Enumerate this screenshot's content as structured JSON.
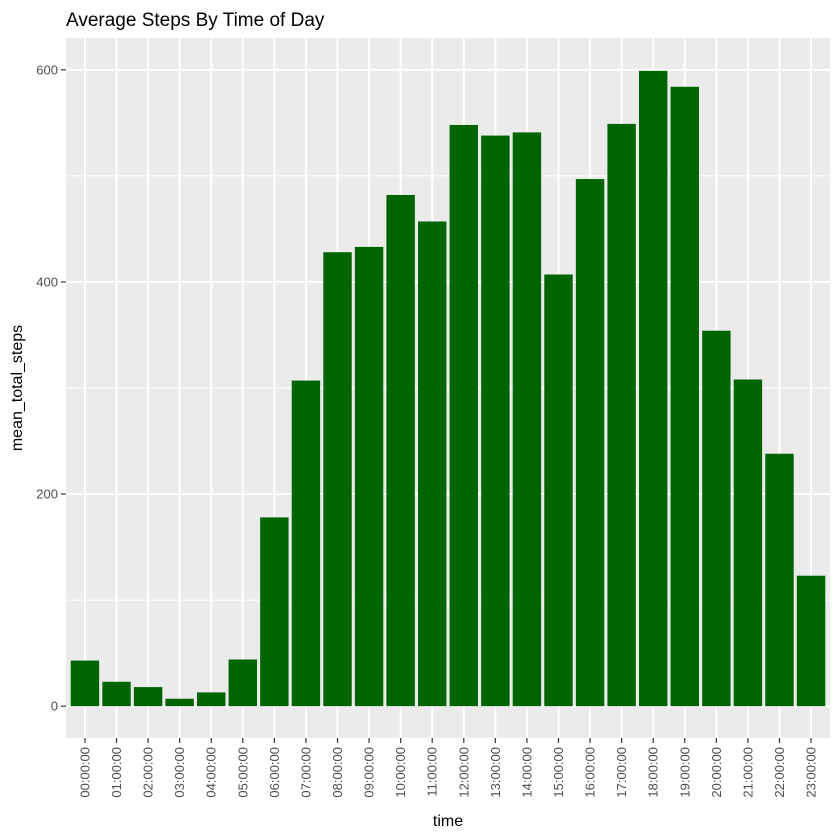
{
  "chart_data": {
    "type": "bar",
    "title": "Average Steps By Time of Day",
    "xlabel": "time",
    "ylabel": "mean_total_steps",
    "categories": [
      "00:00:00",
      "01:00:00",
      "02:00:00",
      "03:00:00",
      "04:00:00",
      "05:00:00",
      "06:00:00",
      "07:00:00",
      "08:00:00",
      "09:00:00",
      "10:00:00",
      "11:00:00",
      "12:00:00",
      "13:00:00",
      "14:00:00",
      "15:00:00",
      "16:00:00",
      "17:00:00",
      "18:00:00",
      "19:00:00",
      "20:00:00",
      "21:00:00",
      "22:00:00",
      "23:00:00"
    ],
    "values": [
      43,
      23,
      18,
      7,
      13,
      44,
      178,
      307,
      428,
      433,
      482,
      457,
      548,
      538,
      541,
      407,
      497,
      549,
      599,
      584,
      354,
      308,
      238,
      123
    ],
    "ylim": [
      -30,
      630
    ],
    "yticks": [
      0,
      200,
      400,
      600
    ],
    "grid": true,
    "legend": "none",
    "colors": {
      "bar": "#006400",
      "panel": "#ebebeb",
      "grid": "#ffffff"
    }
  }
}
